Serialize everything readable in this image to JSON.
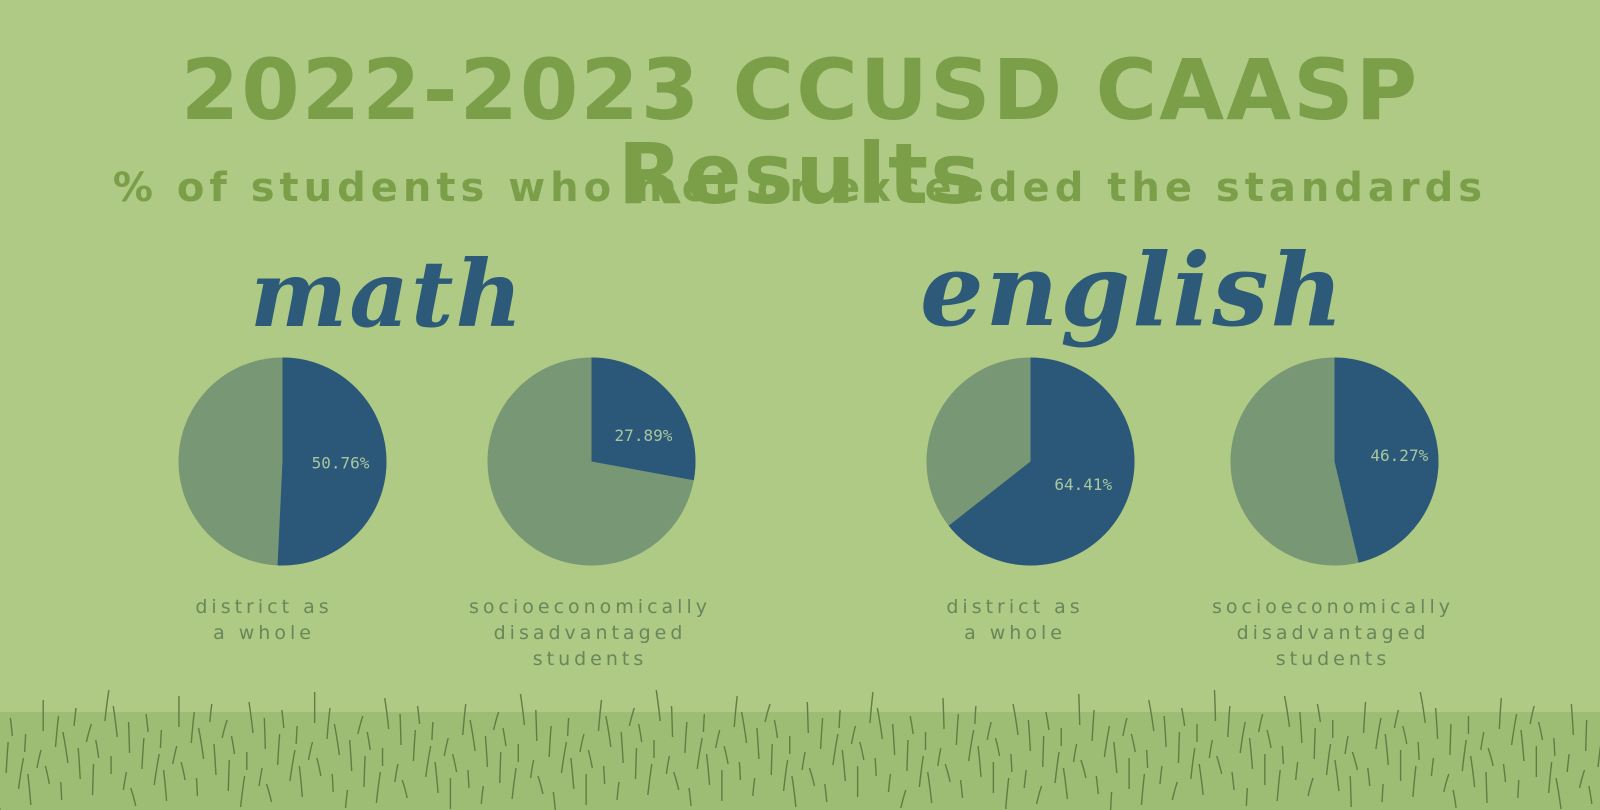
{
  "colors": {
    "background": "#aeca84",
    "title": "#7b9f49",
    "heading": "#2c5a78",
    "met_or_exceeded": "#2b5778",
    "remainder": "#789774",
    "pie_label_text": "#a8c6a0",
    "category_label": "#68875a",
    "grass": "#9cbd73",
    "grass_stroke": "#5f7d45"
  },
  "title": "2022-2023 CCUSD CAASP Results",
  "subtitle": "% of students who met or exceeded the standards",
  "math": {
    "heading": "math",
    "district_label": "district as\na whole",
    "ses_label": "socioeconomically\ndisadvantaged\nstudents"
  },
  "english": {
    "heading": "english",
    "district_label": "district as\na whole",
    "ses_label": "socioeconomically\ndisadvantaged\nstudents"
  },
  "chart_data": [
    {
      "type": "pie",
      "subject": "math",
      "label": "district as a whole",
      "slices": [
        {
          "label": "50.76%",
          "value": 50.76
        },
        {
          "value": 49.24
        }
      ]
    },
    {
      "type": "pie",
      "subject": "math",
      "label": "socioeconomically disadvantaged students",
      "slices": [
        {
          "label": "27.89%",
          "value": 27.89
        },
        {
          "value": 72.11
        }
      ]
    },
    {
      "type": "pie",
      "subject": "english",
      "label": "district as a whole",
      "slices": [
        {
          "label": "64.41%",
          "value": 64.41
        },
        {
          "value": 35.59
        }
      ]
    },
    {
      "type": "pie",
      "subject": "english",
      "label": "socioeconomically disadvantaged students",
      "slices": [
        {
          "label": "46.27%",
          "value": 46.27
        },
        {
          "value": 53.73
        }
      ]
    }
  ]
}
